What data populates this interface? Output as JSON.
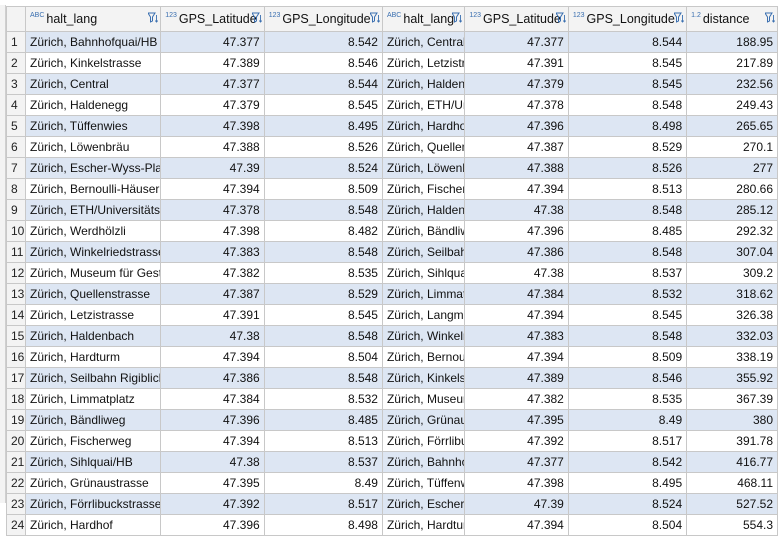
{
  "columns": [
    {
      "type": "ABC",
      "label": "halt_lang"
    },
    {
      "type": "123",
      "label": "GPS_Latitude"
    },
    {
      "type": "123",
      "label": "GPS_Longitude"
    },
    {
      "type": "ABC",
      "label": "halt_lang"
    },
    {
      "type": "123",
      "label": "GPS_Latitude"
    },
    {
      "type": "123",
      "label": "GPS_Longitude"
    },
    {
      "type": "1.2",
      "label": "distance"
    }
  ],
  "rows": [
    [
      "1",
      "Zürich, Bahnhofquai/HB",
      "47.377",
      "8.542",
      "Zürich, Central",
      "47.377",
      "8.544",
      "188.95"
    ],
    [
      "2",
      "Zürich, Kinkelstrasse",
      "47.389",
      "8.546",
      "Zürich, Letzistrasse",
      "47.391",
      "8.545",
      "217.89"
    ],
    [
      "3",
      "Zürich, Central",
      "47.377",
      "8.544",
      "Zürich, Haldenegg",
      "47.379",
      "8.545",
      "232.56"
    ],
    [
      "4",
      "Zürich, Haldenegg",
      "47.379",
      "8.545",
      "Zürich, ETH/Universitätsspital",
      "47.378",
      "8.548",
      "249.43"
    ],
    [
      "5",
      "Zürich, Tüffenwies",
      "47.398",
      "8.495",
      "Zürich, Hardhof",
      "47.396",
      "8.498",
      "265.65"
    ],
    [
      "6",
      "Zürich, Löwenbräu",
      "47.388",
      "8.526",
      "Zürich, Quellenstrasse",
      "47.387",
      "8.529",
      "270.1"
    ],
    [
      "7",
      "Zürich, Escher-Wyss-Platz",
      "47.39",
      "8.524",
      "Zürich, Löwenbräu",
      "47.388",
      "8.526",
      "277"
    ],
    [
      "8",
      "Zürich, Bernoulli-Häuser",
      "47.394",
      "8.509",
      "Zürich, Fischerweg",
      "47.394",
      "8.513",
      "280.66"
    ],
    [
      "9",
      "Zürich, ETH/Universitätsspital",
      "47.378",
      "8.548",
      "Zürich, Haldenbach",
      "47.38",
      "8.548",
      "285.12"
    ],
    [
      "10",
      "Zürich, Werdhölzli",
      "47.398",
      "8.482",
      "Zürich, Bändliweg",
      "47.396",
      "8.485",
      "292.32"
    ],
    [
      "11",
      "Zürich, Winkelriedstrasse",
      "47.383",
      "8.548",
      "Zürich, Seilbahn Rigiblick",
      "47.386",
      "8.548",
      "307.04"
    ],
    [
      "12",
      "Zürich, Museum für Gestaltung",
      "47.382",
      "8.535",
      "Zürich, Sihlquai/HB",
      "47.38",
      "8.537",
      "309.2"
    ],
    [
      "13",
      "Zürich, Quellenstrasse",
      "47.387",
      "8.529",
      "Zürich, Limmatplatz",
      "47.384",
      "8.532",
      "318.62"
    ],
    [
      "14",
      "Zürich, Letzistrasse",
      "47.391",
      "8.545",
      "Zürich, Langmauerstrasse",
      "47.394",
      "8.545",
      "326.38"
    ],
    [
      "15",
      "Zürich, Haldenbach",
      "47.38",
      "8.548",
      "Zürich, Winkelriedstrasse",
      "47.383",
      "8.548",
      "332.03"
    ],
    [
      "16",
      "Zürich, Hardturm",
      "47.394",
      "8.504",
      "Zürich, Bernoulli-Häuser",
      "47.394",
      "8.509",
      "338.19"
    ],
    [
      "17",
      "Zürich, Seilbahn Rigiblick",
      "47.386",
      "8.548",
      "Zürich, Kinkelstrasse",
      "47.389",
      "8.546",
      "355.92"
    ],
    [
      "18",
      "Zürich, Limmatplatz",
      "47.384",
      "8.532",
      "Zürich, Museum für Gestaltung",
      "47.382",
      "8.535",
      "367.39"
    ],
    [
      "19",
      "Zürich, Bändliweg",
      "47.396",
      "8.485",
      "Zürich, Grünaustrasse",
      "47.395",
      "8.49",
      "380"
    ],
    [
      "20",
      "Zürich, Fischerweg",
      "47.394",
      "8.513",
      "Zürich, Förrlibuckstrasse",
      "47.392",
      "8.517",
      "391.78"
    ],
    [
      "21",
      "Zürich, Sihlquai/HB",
      "47.38",
      "8.537",
      "Zürich, Bahnhofquai/HB",
      "47.377",
      "8.542",
      "416.77"
    ],
    [
      "22",
      "Zürich, Grünaustrasse",
      "47.395",
      "8.49",
      "Zürich, Tüffenwies",
      "47.398",
      "8.495",
      "468.11"
    ],
    [
      "23",
      "Zürich, Förrlibuckstrasse",
      "47.392",
      "8.517",
      "Zürich, Escher-Wyss-Platz",
      "47.39",
      "8.524",
      "527.52"
    ],
    [
      "24",
      "Zürich, Hardhof",
      "47.396",
      "8.498",
      "Zürich, Hardturm",
      "47.394",
      "8.504",
      "554.3"
    ]
  ],
  "colors": {
    "alt_row": "#dde6f3",
    "type_icon": "#3a6fb0",
    "filter_icon": "#3a6fb0"
  }
}
